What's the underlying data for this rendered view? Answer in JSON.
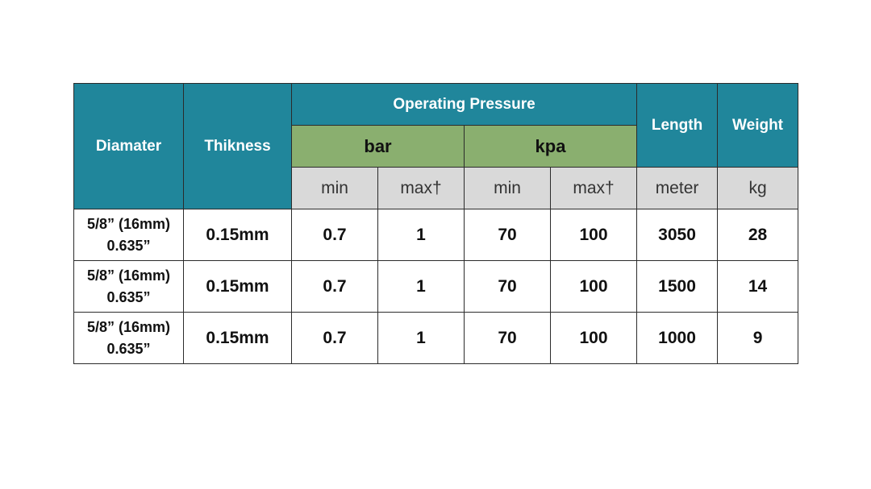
{
  "table": {
    "header": {
      "diameter": "Diamater",
      "thickness": "Thikness",
      "operating_pressure": "Operating Pressure",
      "length": "Length",
      "weight": "Weight",
      "bar": "bar",
      "kpa": "kpa",
      "units": [
        "min",
        "max†",
        "min",
        "max†",
        "meter",
        "kg"
      ]
    },
    "rows": [
      [
        [
          "5/8” (16mm)",
          "0.635”"
        ],
        "0.15mm",
        0.7,
        1,
        70,
        100,
        3050,
        28
      ],
      [
        [
          "5/8” (16mm)",
          "0.635”"
        ],
        "0.15mm",
        0.7,
        1,
        70,
        100,
        1500,
        14
      ],
      [
        [
          "5/8” (16mm)",
          "0.635”"
        ],
        "0.15mm",
        0.7,
        1,
        70,
        100,
        1000,
        9
      ]
    ]
  }
}
